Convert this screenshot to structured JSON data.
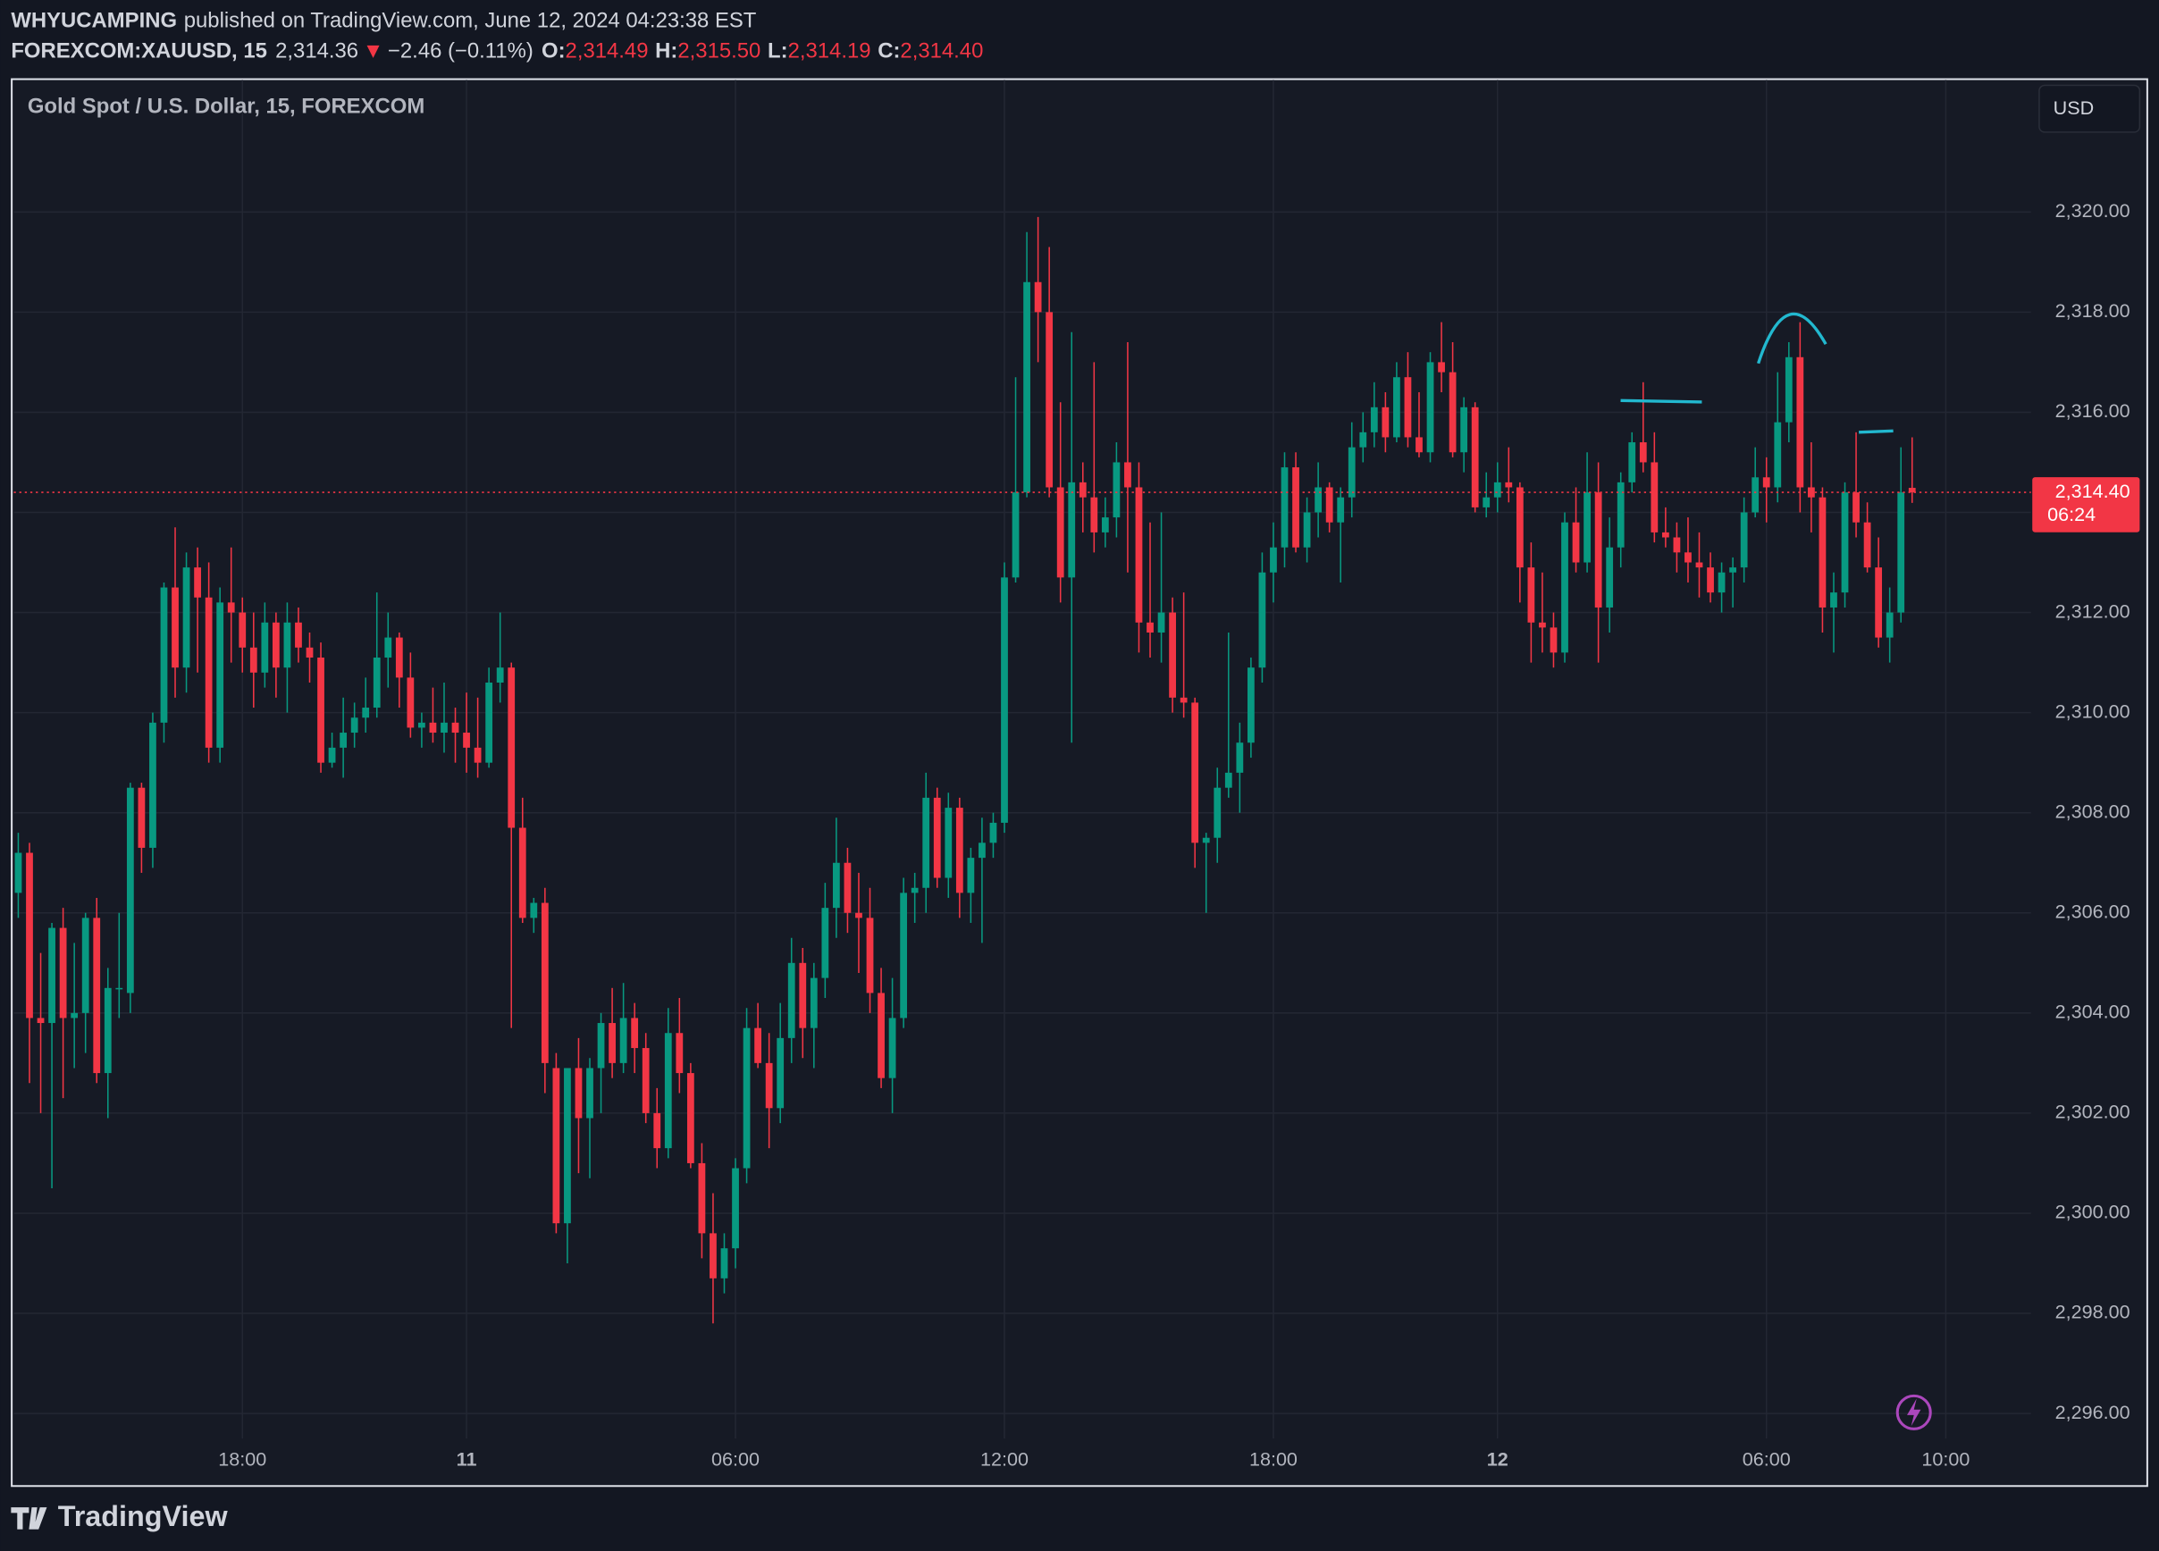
{
  "header": {
    "author": "WHYUCAMPING",
    "published": "published on TradingView.com, June 12, 2024 04:23:38 EST",
    "symbol": "FOREXCOM:XAUUSD, 15",
    "price": "2,314.36",
    "arrow": "▼",
    "change": "−2.46 (−0.11%)",
    "ohlc": [
      {
        "key": "O:",
        "value": "2,314.49"
      },
      {
        "key": "H:",
        "value": "2,315.50"
      },
      {
        "key": "L:",
        "value": "2,314.19"
      },
      {
        "key": "C:",
        "value": "2,314.40"
      }
    ]
  },
  "currency_button": "USD",
  "brand": "TradingView",
  "chart_data": {
    "type": "candlestick",
    "title": "Gold Spot / U.S. Dollar, 15, FOREXCOM",
    "up_color": "#089981",
    "down_color": "#f23645",
    "grid": true,
    "open": [
      2306.4,
      2307.2,
      2303.9,
      2303.8,
      2305.7,
      2303.9,
      2304.0,
      2305.9,
      2302.8,
      2304.5,
      2304.4,
      2308.5,
      2307.3,
      2309.8,
      2312.5,
      2310.9,
      2312.9,
      2312.3,
      2309.3,
      2312.2,
      2312.0,
      2311.3,
      2310.8,
      2311.8,
      2310.9,
      2311.8,
      2311.3,
      2311.1,
      2309.0,
      2309.3,
      2309.6,
      2309.9,
      2310.1,
      2311.1,
      2311.5,
      2310.7,
      2309.7,
      2309.8,
      2309.6,
      2309.8,
      2309.6,
      2309.3,
      2309.0,
      2310.6,
      2310.9,
      2307.7,
      2305.9,
      2306.2,
      2302.9,
      2299.8,
      2302.9,
      2301.9,
      2302.9,
      2303.8,
      2303.0,
      2303.9,
      2303.3,
      2302.0,
      2301.3,
      2303.6,
      2302.8,
      2301.0,
      2299.6,
      2298.7,
      2299.3,
      2300.9,
      2303.7,
      2303.0,
      2302.1,
      2303.5,
      2305.0,
      2303.7,
      2304.7,
      2306.1,
      2307.0,
      2306.0,
      2305.9,
      2304.4,
      2302.7,
      2303.9,
      2306.4,
      2306.5,
      2308.3,
      2306.7,
      2308.1,
      2306.4,
      2307.1,
      2307.4,
      2307.8,
      2312.7,
      2314.4,
      2318.6,
      2318.0,
      2314.5,
      2312.7,
      2314.6,
      2314.3,
      2313.6,
      2313.9,
      2315.0,
      2314.5,
      2311.8,
      2311.6,
      2312.0,
      2310.3,
      2310.2,
      2307.4,
      2307.5,
      2308.5,
      2308.8,
      2309.4,
      2310.9,
      2312.8,
      2313.3,
      2314.9,
      2313.3,
      2314.0,
      2314.5,
      2313.8,
      2314.3,
      2315.3,
      2315.6,
      2316.1,
      2315.5,
      2316.7,
      2315.5,
      2315.2,
      2317.0,
      2316.8,
      2315.2,
      2316.1,
      2314.1,
      2314.3,
      2314.6,
      2314.5,
      2312.9,
      2311.8,
      2311.7,
      2311.2,
      2313.8,
      2313.0,
      2314.4,
      2312.1,
      2313.3,
      2314.6,
      2315.4,
      2315.0,
      2313.6,
      2313.5,
      2313.2,
      2313.0,
      2312.9,
      2312.4,
      2312.8,
      2312.9,
      2314.0,
      2314.7,
      2314.5,
      2315.8,
      2317.1,
      2314.5,
      2314.3,
      2312.1,
      2312.4,
      2314.4,
      2313.8,
      2312.9,
      2311.5,
      2312.0,
      2314.49
    ],
    "high": [
      2307.6,
      2307.4,
      2305.2,
      2305.8,
      2306.1,
      2305.4,
      2306.0,
      2306.3,
      2304.9,
      2306.0,
      2308.6,
      2308.6,
      2310.0,
      2312.6,
      2313.7,
      2313.2,
      2313.3,
      2313.0,
      2312.5,
      2313.3,
      2312.3,
      2312.0,
      2312.2,
      2312.0,
      2312.2,
      2312.1,
      2311.6,
      2311.4,
      2309.6,
      2310.3,
      2310.2,
      2310.7,
      2312.4,
      2312.0,
      2311.6,
      2311.2,
      2310.0,
      2310.5,
      2310.6,
      2310.1,
      2310.4,
      2310.3,
      2310.9,
      2312.0,
      2311.0,
      2308.3,
      2306.3,
      2306.5,
      2303.2,
      2302.9,
      2303.5,
      2303.1,
      2304.0,
      2304.5,
      2304.6,
      2304.2,
      2303.6,
      2302.5,
      2304.1,
      2304.3,
      2303.0,
      2301.4,
      2300.4,
      2299.6,
      2301.1,
      2304.1,
      2304.2,
      2303.6,
      2304.2,
      2305.5,
      2305.3,
      2305.0,
      2306.6,
      2307.9,
      2307.3,
      2306.8,
      2306.5,
      2304.9,
      2304.7,
      2306.7,
      2306.8,
      2308.8,
      2308.5,
      2308.4,
      2308.3,
      2307.3,
      2307.9,
      2308.0,
      2313.0,
      2316.7,
      2319.6,
      2319.9,
      2319.3,
      2316.2,
      2317.6,
      2315.0,
      2317.0,
      2314.3,
      2315.4,
      2317.4,
      2315.0,
      2313.8,
      2314.0,
      2312.3,
      2312.4,
      2310.3,
      2307.6,
      2308.9,
      2311.6,
      2309.8,
      2311.1,
      2313.2,
      2313.8,
      2315.2,
      2315.2,
      2314.3,
      2315.0,
      2314.6,
      2314.5,
      2315.8,
      2316.0,
      2316.6,
      2316.4,
      2317.0,
      2317.2,
      2316.4,
      2317.2,
      2317.8,
      2317.4,
      2316.3,
      2316.2,
      2314.8,
      2315.0,
      2315.3,
      2314.6,
      2313.4,
      2312.8,
      2312.0,
      2314.0,
      2314.5,
      2315.2,
      2315.0,
      2313.9,
      2314.8,
      2315.6,
      2316.6,
      2315.6,
      2314.1,
      2313.8,
      2313.9,
      2313.6,
      2313.2,
      2313.0,
      2313.1,
      2314.3,
      2315.3,
      2315.1,
      2316.8,
      2317.4,
      2317.8,
      2315.4,
      2314.5,
      2312.8,
      2314.6,
      2315.6,
      2314.2,
      2313.5,
      2312.5,
      2315.3,
      2315.5
    ],
    "low": [
      2305.9,
      2302.6,
      2302.0,
      2300.5,
      2302.3,
      2302.9,
      2303.2,
      2302.6,
      2301.9,
      2303.9,
      2304.0,
      2306.8,
      2306.9,
      2309.4,
      2310.3,
      2310.4,
      2310.8,
      2309.0,
      2309.0,
      2311.0,
      2310.8,
      2310.1,
      2310.5,
      2310.3,
      2310.0,
      2311.0,
      2310.6,
      2308.8,
      2308.9,
      2308.7,
      2309.3,
      2309.6,
      2309.9,
      2310.5,
      2310.1,
      2309.5,
      2309.3,
      2309.4,
      2309.2,
      2309.0,
      2308.8,
      2308.7,
      2308.9,
      2310.2,
      2303.7,
      2305.8,
      2305.6,
      2302.4,
      2299.6,
      2299.0,
      2300.8,
      2300.7,
      2302.0,
      2302.7,
      2302.8,
      2302.8,
      2301.8,
      2300.9,
      2301.1,
      2302.4,
      2300.9,
      2299.1,
      2297.8,
      2298.4,
      2298.9,
      2300.6,
      2302.9,
      2301.3,
      2301.8,
      2303.0,
      2303.1,
      2302.9,
      2304.3,
      2305.5,
      2305.6,
      2304.8,
      2304.0,
      2302.5,
      2302.0,
      2303.7,
      2305.8,
      2306.0,
      2306.5,
      2306.3,
      2305.9,
      2305.8,
      2305.4,
      2307.1,
      2307.6,
      2312.6,
      2314.3,
      2317.0,
      2314.3,
      2312.2,
      2309.4,
      2313.6,
      2313.2,
      2313.3,
      2313.5,
      2312.8,
      2311.2,
      2311.1,
      2311.0,
      2310.0,
      2309.9,
      2306.9,
      2306.0,
      2307.0,
      2308.3,
      2308.0,
      2309.1,
      2310.6,
      2312.2,
      2312.9,
      2313.2,
      2313.0,
      2313.5,
      2313.6,
      2312.6,
      2313.9,
      2315.0,
      2315.3,
      2315.2,
      2315.4,
      2315.3,
      2315.1,
      2315.0,
      2316.4,
      2315.1,
      2314.8,
      2314.0,
      2313.9,
      2314.0,
      2314.2,
      2312.2,
      2311.0,
      2311.2,
      2310.9,
      2311.0,
      2312.8,
      2312.8,
      2311.0,
      2311.6,
      2312.9,
      2314.4,
      2314.8,
      2313.4,
      2313.3,
      2312.8,
      2312.6,
      2312.3,
      2312.2,
      2312.0,
      2312.1,
      2312.6,
      2313.9,
      2313.8,
      2314.2,
      2315.4,
      2314.0,
      2313.6,
      2311.6,
      2311.2,
      2312.1,
      2313.5,
      2312.8,
      2311.3,
      2311.0,
      2311.8,
      2314.19
    ],
    "close": [
      2307.2,
      2303.9,
      2303.8,
      2305.7,
      2303.9,
      2304.0,
      2305.9,
      2302.8,
      2304.5,
      2304.5,
      2308.5,
      2307.3,
      2309.8,
      2312.5,
      2310.9,
      2312.9,
      2312.3,
      2309.3,
      2312.2,
      2312.0,
      2311.3,
      2310.8,
      2311.8,
      2310.9,
      2311.8,
      2311.3,
      2311.1,
      2309.0,
      2309.3,
      2309.6,
      2309.9,
      2310.1,
      2311.1,
      2311.5,
      2310.7,
      2309.7,
      2309.8,
      2309.6,
      2309.8,
      2309.6,
      2309.3,
      2309.0,
      2310.6,
      2310.9,
      2307.7,
      2305.9,
      2306.2,
      2303.0,
      2299.8,
      2302.9,
      2301.9,
      2302.9,
      2303.8,
      2303.0,
      2303.9,
      2303.3,
      2302.0,
      2301.3,
      2303.6,
      2302.8,
      2301.0,
      2299.6,
      2298.7,
      2299.3,
      2300.9,
      2303.7,
      2303.0,
      2302.1,
      2303.5,
      2305.0,
      2303.7,
      2304.7,
      2306.1,
      2307.0,
      2306.0,
      2305.9,
      2304.4,
      2302.7,
      2303.9,
      2306.4,
      2306.5,
      2308.3,
      2306.7,
      2308.1,
      2306.4,
      2307.1,
      2307.4,
      2307.8,
      2312.7,
      2314.4,
      2318.6,
      2318.0,
      2314.5,
      2312.7,
      2314.6,
      2314.3,
      2313.6,
      2313.9,
      2315.0,
      2314.5,
      2311.8,
      2311.6,
      2312.0,
      2310.3,
      2310.2,
      2307.4,
      2307.5,
      2308.5,
      2308.8,
      2309.4,
      2310.9,
      2312.8,
      2313.3,
      2314.9,
      2313.3,
      2314.0,
      2314.5,
      2313.8,
      2314.3,
      2315.3,
      2315.6,
      2316.1,
      2315.5,
      2316.7,
      2315.5,
      2315.2,
      2317.0,
      2316.8,
      2315.2,
      2316.1,
      2314.1,
      2314.3,
      2314.6,
      2314.5,
      2312.9,
      2311.8,
      2311.7,
      2311.2,
      2313.8,
      2313.0,
      2314.4,
      2312.1,
      2313.3,
      2314.6,
      2315.4,
      2315.0,
      2313.6,
      2313.5,
      2313.2,
      2313.0,
      2312.9,
      2312.4,
      2312.8,
      2312.9,
      2314.0,
      2314.7,
      2314.5,
      2315.8,
      2317.1,
      2314.5,
      2314.3,
      2312.1,
      2312.4,
      2314.4,
      2313.8,
      2312.9,
      2311.5,
      2312.0,
      2314.4,
      2314.4
    ],
    "xlim": [
      -0.4,
      179.6
    ],
    "xticks": [
      {
        "value": 20,
        "label": "18:00"
      },
      {
        "value": 40,
        "label": "11"
      },
      {
        "value": 64,
        "label": "06:00"
      },
      {
        "value": 88,
        "label": "12:00"
      },
      {
        "value": 112,
        "label": "18:00"
      },
      {
        "value": 132,
        "label": "12"
      },
      {
        "value": 156,
        "label": "06:00"
      },
      {
        "value": 172,
        "label": "10:00"
      }
    ],
    "ylim": [
      2295.5,
      2322.64
    ],
    "yticks": [
      {
        "value": 2296,
        "label": "2,296.00"
      },
      {
        "value": 2298,
        "label": "2,298.00"
      },
      {
        "value": 2300,
        "label": "2,300.00"
      },
      {
        "value": 2302,
        "label": "2,302.00"
      },
      {
        "value": 2304,
        "label": "2,304.00"
      },
      {
        "value": 2306,
        "label": "2,306.00"
      },
      {
        "value": 2308,
        "label": "2,308.00"
      },
      {
        "value": 2310,
        "label": "2,310.00"
      },
      {
        "value": 2312,
        "label": "2,312.00"
      },
      {
        "value": 2314,
        "label": "2,314.00"
      },
      {
        "value": 2316,
        "label": "2,316.00"
      },
      {
        "value": 2318,
        "label": "2,318.00"
      },
      {
        "value": 2320,
        "label": "2,320.00"
      }
    ],
    "last_price": {
      "value": 2314.4,
      "label": "2,314.40"
    },
    "countdown": "06:24"
  }
}
